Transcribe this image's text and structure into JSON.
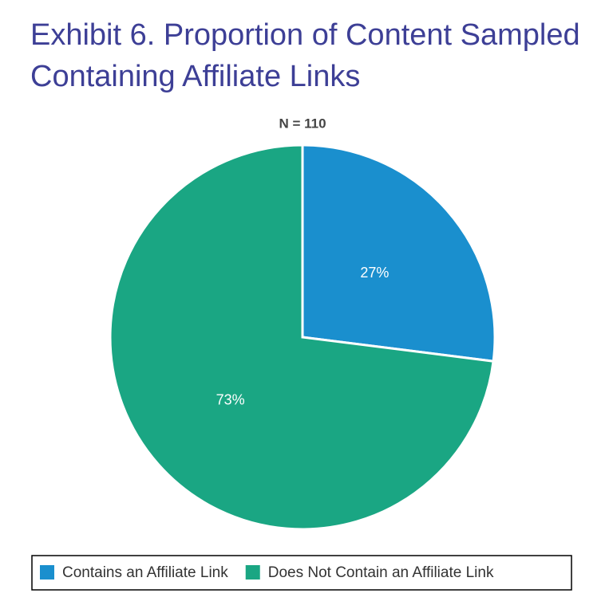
{
  "chart_data": {
    "type": "pie",
    "title": "Exhibit 6. Proportion of Content Sampled Containing Affiliate Links",
    "subtitle": "N = 110",
    "categories": [
      "Contains an Affiliate Link",
      "Does Not Contain an Affiliate Link"
    ],
    "values": [
      27,
      73
    ],
    "value_labels": [
      "27%",
      "73%"
    ],
    "colors": [
      "#1a8fce",
      "#1aa683"
    ],
    "legend": "bottom"
  }
}
